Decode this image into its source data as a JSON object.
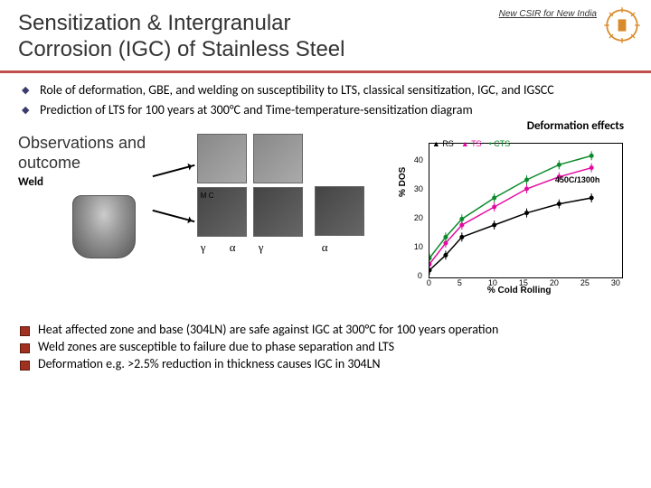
{
  "header": {
    "title_line1": "Sensitization & Intergranular",
    "title_line2": "Corrosion (IGC) of Stainless Steel",
    "tagline": "New CSIR for New India"
  },
  "bullets_top": [
    "Role of deformation, GBE, and welding on susceptibility to LTS, classical sensitization, IGC, and IGSCC",
    "Prediction of LTS for 100 years at 300°C and Time-temperature-sensitization diagram"
  ],
  "observations": {
    "title_l1": "Observations and",
    "title_l2": "outcome",
    "weld_label": "Weld",
    "mc_label": "M C",
    "greek": {
      "gamma": "γ",
      "alpha": "α"
    }
  },
  "chart": {
    "label": "Deformation effects",
    "ylabel": "% DOS",
    "xlabel": "% Cold Rolling",
    "annotation": "450C/1300h",
    "legend": {
      "rs": "RS",
      "ts": "TS",
      "cts": "CTS"
    },
    "xticks": [
      "0",
      "5",
      "10",
      "15",
      "20",
      "25",
      "30"
    ],
    "yticks": [
      "0",
      "10",
      "20",
      "30",
      "40"
    ],
    "ylim": [
      0,
      45
    ],
    "xlim": [
      0,
      30
    ],
    "series": {
      "rs": {
        "color": "#000000",
        "points": [
          [
            0,
            3
          ],
          [
            2.5,
            8
          ],
          [
            5,
            14
          ],
          [
            10,
            18
          ],
          [
            15,
            22
          ],
          [
            20,
            25
          ],
          [
            25,
            27
          ]
        ]
      },
      "ts": {
        "color": "#e30ba0",
        "points": [
          [
            0,
            5
          ],
          [
            2.5,
            12
          ],
          [
            5,
            18
          ],
          [
            10,
            24
          ],
          [
            15,
            30
          ],
          [
            20,
            34
          ],
          [
            25,
            37
          ]
        ]
      },
      "cts": {
        "color": "#0a8a2a",
        "points": [
          [
            0,
            7
          ],
          [
            2.5,
            14
          ],
          [
            5,
            20
          ],
          [
            10,
            27
          ],
          [
            15,
            33
          ],
          [
            20,
            38
          ],
          [
            25,
            41
          ]
        ]
      }
    }
  },
  "bullets_bottom": [
    "Heat affected zone and base (304LN) are safe against IGC at 300°C for 100 years operation",
    "Weld zones are susceptible to failure due to phase separation and LTS",
    "Deformation e.g. >2.5% reduction in thickness causes IGC in 304LN"
  ],
  "colors": {
    "rule": "#c0504d",
    "logo": "#d98b2b"
  }
}
